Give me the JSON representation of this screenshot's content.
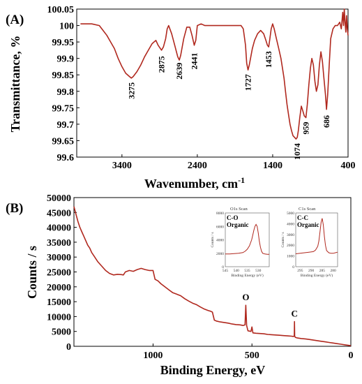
{
  "chart_data": [
    {
      "type": "line",
      "panel_label": "(A)",
      "xlabel": "Wavenumber, cm",
      "xlabel_sup": "-1",
      "ylabel": "Transmittance, %",
      "xlim": [
        4000,
        400
      ],
      "ylim": [
        99.6,
        100.05
      ],
      "x_ticks": [
        3400,
        2400,
        1400,
        400
      ],
      "y_ticks": [
        99.6,
        99.65,
        99.7,
        99.75,
        99.8,
        99.85,
        99.9,
        99.95,
        100,
        100.05
      ],
      "grid": false,
      "line_color": "#b0281e",
      "peak_labels": [
        {
          "x": 3275,
          "y": 99.84,
          "label": "3275"
        },
        {
          "x": 2875,
          "y": 99.92,
          "label": "2875"
        },
        {
          "x": 2639,
          "y": 99.9,
          "label": "2639"
        },
        {
          "x": 2441,
          "y": 99.93,
          "label": "2441"
        },
        {
          "x": 1727,
          "y": 99.865,
          "label": "1727"
        },
        {
          "x": 1453,
          "y": 99.935,
          "label": "1453"
        },
        {
          "x": 1074,
          "y": 99.655,
          "label": "1074"
        },
        {
          "x": 959,
          "y": 99.72,
          "label": "959"
        },
        {
          "x": 686,
          "y": 99.74,
          "label": "686"
        }
      ],
      "series": [
        {
          "x": [
            3950,
            3800,
            3700,
            3650,
            3600,
            3550,
            3500,
            3450,
            3400,
            3350,
            3300,
            3275,
            3250,
            3200,
            3150,
            3100,
            3050,
            3000,
            2950,
            2920,
            2875,
            2850,
            2820,
            2800,
            2780,
            2740,
            2700,
            2660,
            2639,
            2620,
            2580,
            2540,
            2500,
            2470,
            2441,
            2420,
            2400,
            2350,
            2300,
            2200,
            2100,
            2000,
            1900,
            1820,
            1790,
            1760,
            1745,
            1727,
            1710,
            1690,
            1670,
            1640,
            1600,
            1560,
            1520,
            1490,
            1470,
            1453,
            1440,
            1420,
            1400,
            1380,
            1350,
            1320,
            1290,
            1270,
            1250,
            1230,
            1210,
            1190,
            1170,
            1150,
            1130,
            1110,
            1090,
            1074,
            1060,
            1040,
            1020,
            1000,
            980,
            959,
            940,
            920,
            900,
            880,
            860,
            840,
            820,
            800,
            780,
            760,
            740,
            720,
            700,
            686,
            670,
            650,
            630,
            600,
            570,
            540,
            510,
            490,
            470,
            460,
            450,
            440,
            430,
            420,
            410,
            400
          ],
          "y": [
            100.005,
            100.005,
            100.0,
            99.985,
            99.97,
            99.95,
            99.93,
            99.9,
            99.875,
            99.855,
            99.845,
            99.84,
            99.845,
            99.86,
            99.88,
            99.905,
            99.925,
            99.945,
            99.955,
            99.94,
            99.925,
            99.935,
            99.96,
            99.99,
            100.0,
            99.975,
            99.94,
            99.905,
            99.895,
            99.91,
            99.96,
            99.995,
            99.995,
            99.97,
            99.94,
            99.955,
            100.0,
            100.005,
            100.0,
            100.0,
            100.0,
            100.0,
            100.0,
            100.0,
            99.99,
            99.94,
            99.885,
            99.865,
            99.88,
            99.905,
            99.93,
            99.955,
            99.975,
            99.985,
            99.975,
            99.955,
            99.94,
            99.935,
            99.955,
            99.99,
            100.005,
            99.99,
            99.96,
            99.93,
            99.9,
            99.87,
            99.84,
            99.8,
            99.76,
            99.73,
            99.7,
            99.68,
            99.665,
            99.66,
            99.655,
            99.66,
            99.68,
            99.72,
            99.755,
            99.74,
            99.725,
            99.72,
            99.76,
            99.82,
            99.87,
            99.9,
            99.88,
            99.83,
            99.8,
            99.82,
            99.88,
            99.92,
            99.89,
            99.84,
            99.79,
            99.745,
            99.79,
            99.88,
            99.96,
            99.99,
            100.0,
            100.0,
            100.01,
            99.99,
            100.04,
            100.0,
            100.05,
            100.01,
            99.98,
            100.03,
            99.99,
            99.97
          ]
        }
      ]
    },
    {
      "type": "line",
      "panel_label": "(B)",
      "xlabel": "Binding Energy, eV",
      "ylabel": "Counts / s",
      "xlim": [
        1400,
        0
      ],
      "ylim": [
        0,
        50000
      ],
      "x_ticks": [
        1000,
        500,
        0
      ],
      "y_ticks": [
        0,
        5000,
        10000,
        15000,
        20000,
        25000,
        30000,
        35000,
        40000,
        45000,
        50000
      ],
      "grid": false,
      "line_color": "#b0281e",
      "peak_labels": [
        {
          "x": 531,
          "y": 14500,
          "label": "O"
        },
        {
          "x": 285,
          "y": 9000,
          "label": "C"
        }
      ],
      "series": [
        {
          "x": [
            1400,
            1390,
            1380,
            1370,
            1360,
            1350,
            1340,
            1330,
            1320,
            1310,
            1300,
            1280,
            1260,
            1240,
            1220,
            1200,
            1180,
            1160,
            1150,
            1140,
            1120,
            1100,
            1080,
            1060,
            1040,
            1020,
            1000,
            990,
            975,
            960,
            940,
            920,
            900,
            880,
            860,
            840,
            820,
            800,
            780,
            760,
            740,
            720,
            710,
            700,
            690,
            680,
            660,
            640,
            620,
            600,
            580,
            560,
            545,
            535,
            531,
            527,
            520,
            505,
            500,
            495,
            480,
            460,
            440,
            420,
            400,
            380,
            360,
            340,
            320,
            300,
            290,
            286,
            285,
            284,
            280,
            270,
            250,
            230,
            210,
            190,
            170,
            150,
            130,
            110,
            90,
            70,
            50,
            30,
            10,
            0
          ],
          "y": [
            47000,
            44500,
            42000,
            40000,
            38500,
            37000,
            35500,
            34000,
            33000,
            31500,
            30500,
            28500,
            27000,
            25500,
            24500,
            24000,
            24200,
            24100,
            24000,
            25000,
            25500,
            25200,
            25800,
            26200,
            25800,
            25500,
            25500,
            22500,
            22000,
            21000,
            20000,
            19000,
            18000,
            17500,
            17000,
            16000,
            15200,
            14500,
            14000,
            13200,
            12500,
            12000,
            11800,
            11500,
            8800,
            8500,
            8200,
            8000,
            7800,
            7500,
            7300,
            7200,
            7000,
            7200,
            13800,
            7000,
            5200,
            5000,
            6500,
            4500,
            4400,
            4300,
            4200,
            4000,
            3900,
            3800,
            3700,
            3600,
            3500,
            3400,
            3300,
            3500,
            8300,
            3300,
            3000,
            2800,
            2600,
            2500,
            2300,
            2100,
            1900,
            1700,
            1500,
            1300,
            1100,
            900,
            700,
            500,
            300,
            200
          ]
        }
      ],
      "insets": [
        {
          "title": "O1s Scan",
          "label_line1": "C-O",
          "label_line2": "Organic",
          "xlabel": "Binding Energy (eV)",
          "ylabel": "Counts / s",
          "xlim": [
            545,
            525
          ],
          "ylim": [
            0,
            8000
          ],
          "x_ticks": [
            545,
            540,
            535,
            530
          ],
          "y_ticks": [
            0,
            2000,
            4000,
            6000,
            8000
          ],
          "series": [
            {
              "x": [
                545,
                543,
                541,
                539,
                537,
                536,
                535,
                534,
                533,
                532.5,
                532,
                531.5,
                531,
                530.5,
                530,
                529.5,
                529,
                528.5,
                528,
                527,
                526,
                525
              ],
              "y": [
                1900,
                1900,
                1950,
                2000,
                2100,
                2300,
                2600,
                3100,
                4000,
                4700,
                5400,
                6000,
                6300,
                6000,
                5000,
                3800,
                2900,
                2300,
                2000,
                1900,
                1850,
                1850
              ]
            }
          ]
        },
        {
          "title": "C1s Scan",
          "label_line1": "C-C",
          "label_line2": "Organic",
          "xlabel": "Binding Energy (eV)",
          "ylabel": "Counts / s",
          "xlim": [
            297,
            278
          ],
          "ylim": [
            0,
            5000
          ],
          "x_ticks": [
            295,
            290,
            285,
            280
          ],
          "y_ticks": [
            0,
            1000,
            2000,
            3000,
            4000,
            5000
          ],
          "series": [
            {
              "x": [
                297,
                295,
                293,
                291,
                289,
                288,
                287,
                286.5,
                286,
                285.5,
                285,
                284.5,
                284,
                283.5,
                283,
                282,
                281,
                280,
                279,
                278
              ],
              "y": [
                1200,
                1250,
                1300,
                1350,
                1400,
                1550,
                1900,
                2400,
                3200,
                4100,
                4500,
                3900,
                2800,
                2000,
                1500,
                1300,
                1250,
                1250,
                1300,
                1350
              ]
            }
          ]
        }
      ]
    }
  ]
}
